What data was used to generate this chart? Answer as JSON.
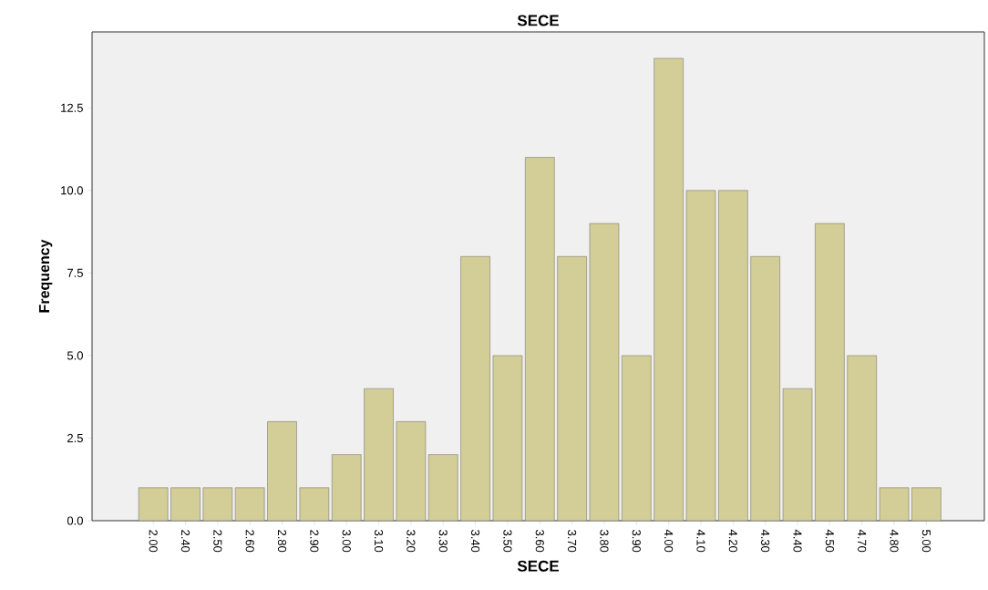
{
  "chart_data": {
    "type": "bar",
    "title": "SECE",
    "xlabel": "SECE",
    "ylabel": "Frequency",
    "categories": [
      "2.00",
      "2.40",
      "2.50",
      "2.60",
      "2.80",
      "2.90",
      "3.00",
      "3.10",
      "3.20",
      "3.30",
      "3.40",
      "3.50",
      "3.60",
      "3.70",
      "3.80",
      "3.90",
      "4.00",
      "4.10",
      "4.20",
      "4.30",
      "4.40",
      "4.50",
      "4.70",
      "4.80",
      "5.00"
    ],
    "values": [
      1,
      1,
      1,
      1,
      3,
      1,
      2,
      4,
      3,
      2,
      8,
      5,
      11,
      8,
      9,
      5,
      14,
      10,
      10,
      8,
      4,
      9,
      5,
      1,
      1
    ],
    "color": "#d3cd97",
    "ylim": [
      0,
      14.8
    ],
    "yticks": [
      {
        "value": 0,
        "label": "0.0"
      },
      {
        "value": 2.5,
        "label": "2.5"
      },
      {
        "value": 5,
        "label": "5.0"
      },
      {
        "value": 7.5,
        "label": "7.5"
      },
      {
        "value": 10,
        "label": "10.0"
      },
      {
        "value": 12.5,
        "label": "12.5"
      }
    ],
    "grid": false
  }
}
